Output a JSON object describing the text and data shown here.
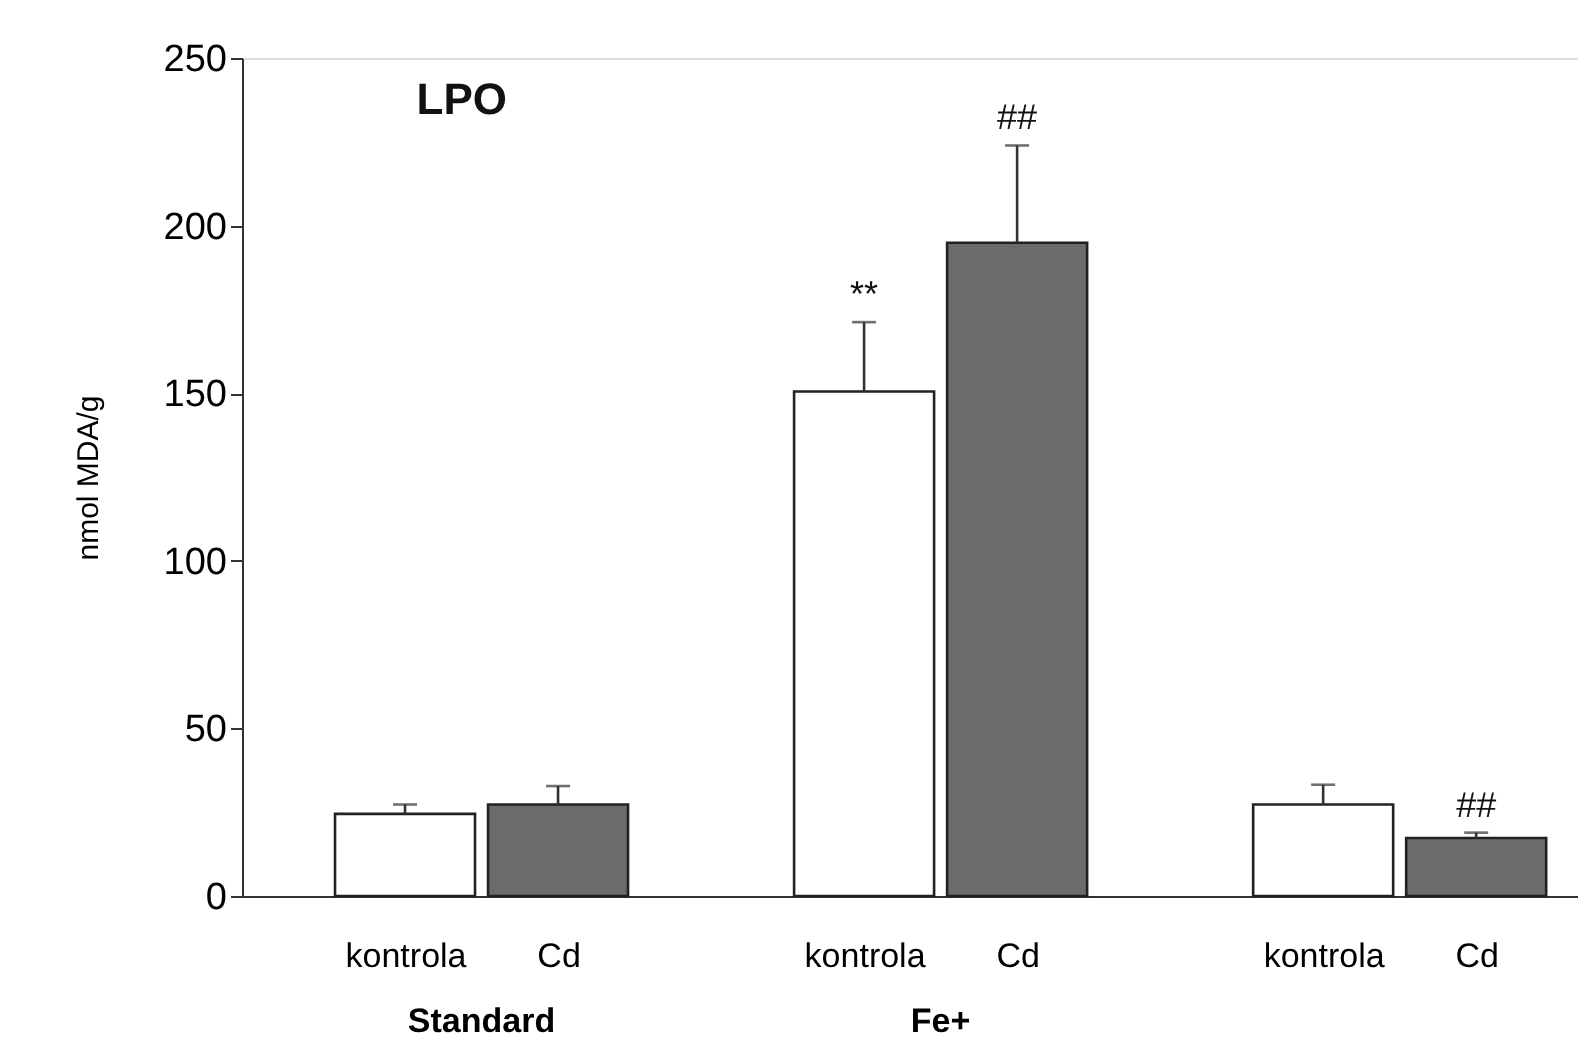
{
  "chart_data": {
    "type": "bar",
    "title": "LPO",
    "ylabel": "nmol MDA/g",
    "categories": [
      "kontrola",
      "Cd",
      "kontrola",
      "Cd",
      "kontrola",
      "Cd"
    ],
    "values": [
      24.5,
      27.3,
      150.5,
      194.9,
      27.3,
      17.3
    ],
    "errors": [
      2.8,
      5.5,
      20.7,
      29,
      5.9,
      1.6
    ],
    "colors": [
      "#ffffff",
      "#6b6b6b",
      "#ffffff",
      "#6b6b6b",
      "#ffffff",
      "#6b6b6b"
    ],
    "ylim": [
      0,
      250
    ],
    "yticks": [
      0,
      50,
      100,
      150,
      200,
      250
    ],
    "value_labels": [
      null,
      null,
      "**",
      "##",
      null,
      "##"
    ],
    "grid": false,
    "annotations": [
      "Standard",
      "Fe+"
    ]
  }
}
